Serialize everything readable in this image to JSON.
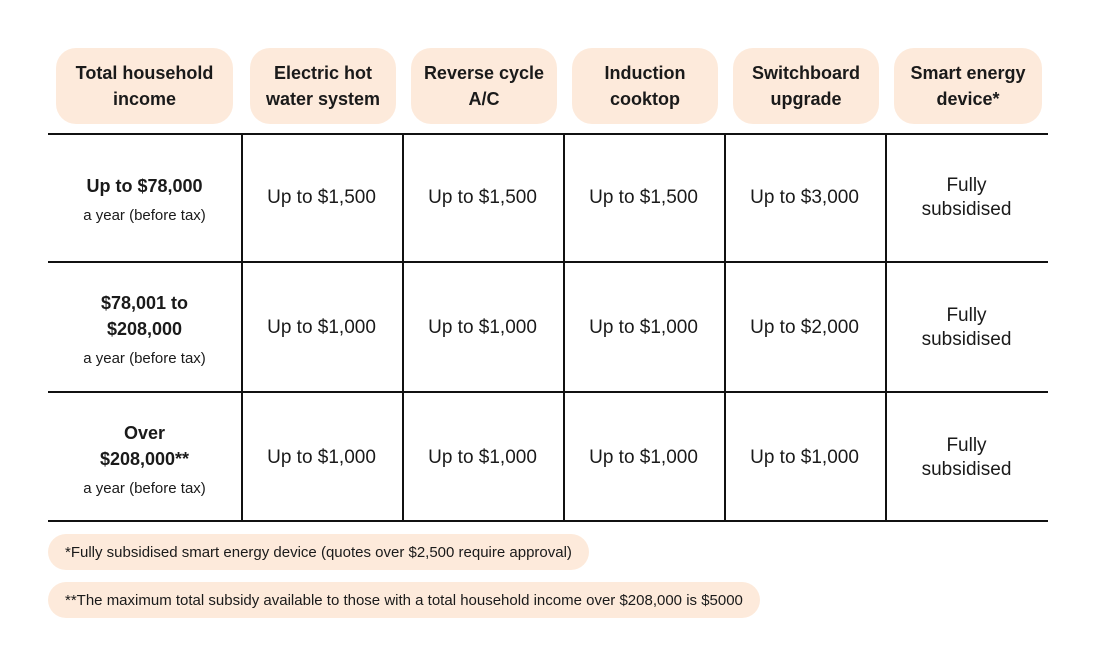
{
  "table": {
    "headers": [
      "Total household income",
      "Electric hot water system",
      "Reverse cycle A/C",
      "Induction cooktop",
      "Switchboard upgrade",
      "Smart energy device*"
    ],
    "rows": [
      {
        "income": "Up to $78,000",
        "note": "a year (before tax)",
        "cells": [
          "Up to $1,500",
          "Up to $1,500",
          "Up to $1,500",
          "Up to $3,000",
          "Fully subsidised"
        ]
      },
      {
        "income": "$78,001 to $208,000",
        "note": "a year (before tax)",
        "cells": [
          "Up to $1,000",
          "Up to $1,000",
          "Up to $1,000",
          "Up to $2,000",
          "Fully subsidised"
        ]
      },
      {
        "income": "Over $208,000**",
        "note": "a year (before tax)",
        "cells": [
          "Up to $1,000",
          "Up to $1,000",
          "Up to $1,000",
          "Up to $1,000",
          "Fully subsidised"
        ]
      }
    ]
  },
  "footnotes": [
    "*Fully subsidised smart energy device (quotes over $2,500 require approval)",
    "**The maximum total subsidy available to those with a total household income over $208,000 is $5000"
  ]
}
